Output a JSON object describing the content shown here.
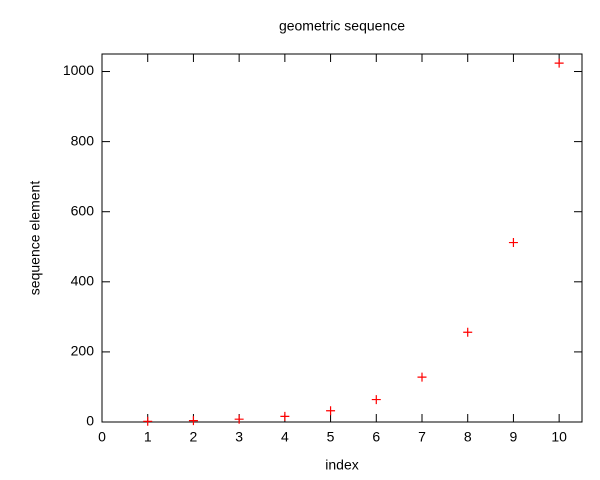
{
  "chart_data": {
    "type": "scatter",
    "title": "geometric sequence",
    "x_label": "index",
    "y_label": "sequence element",
    "series": [
      {
        "color": "#ff0000",
        "marker": "plus",
        "x": [
          1,
          2,
          3,
          4,
          5,
          6,
          7,
          8,
          9,
          10
        ],
        "values": [
          2,
          4,
          8,
          16,
          32,
          64,
          128,
          256,
          512,
          1024
        ]
      }
    ],
    "xlim": [
      0,
      10.5
    ],
    "xticks": [
      0,
      1,
      2,
      3,
      4,
      5,
      6,
      7,
      8,
      9,
      10
    ],
    "ylim": [
      0,
      1050
    ],
    "yticks": [
      0,
      200,
      400,
      600,
      800,
      1000
    ],
    "grid": false
  }
}
